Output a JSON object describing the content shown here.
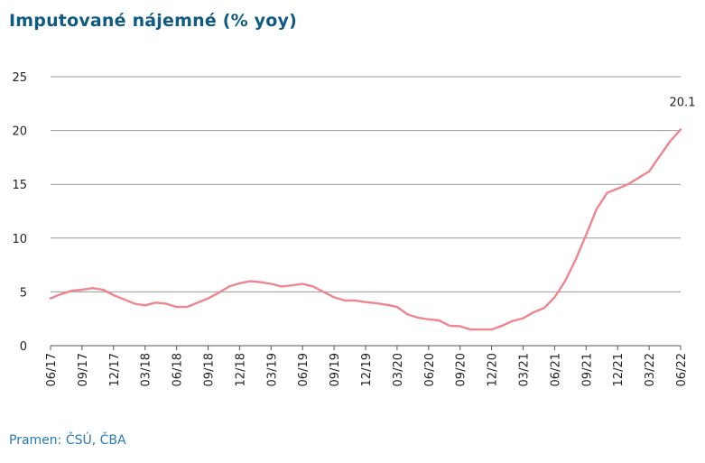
{
  "title": "Imputované nájemné (% yoy)",
  "source": "Pramen: ČSÚ, ČBA",
  "chart_data": {
    "type": "line",
    "title": "Imputované nájemné (% yoy)",
    "xlabel": "",
    "ylabel": "",
    "ylim": [
      0,
      25
    ],
    "yticks": [
      "0",
      "5",
      "10",
      "15",
      "20",
      "25"
    ],
    "grid": true,
    "xticklabels": [
      "06/17",
      "09/17",
      "12/17",
      "03/18",
      "06/18",
      "09/18",
      "12/18",
      "03/19",
      "06/19",
      "09/19",
      "12/19",
      "03/20",
      "06/20",
      "09/20",
      "12/20",
      "03/21",
      "06/21",
      "09/21",
      "12/21",
      "03/22",
      "06/22"
    ],
    "x": [
      "06/17",
      "07/17",
      "08/17",
      "09/17",
      "10/17",
      "11/17",
      "12/17",
      "01/18",
      "02/18",
      "03/18",
      "04/18",
      "05/18",
      "06/18",
      "07/18",
      "08/18",
      "09/18",
      "10/18",
      "11/18",
      "12/18",
      "01/19",
      "02/19",
      "03/19",
      "04/19",
      "05/19",
      "06/19",
      "07/19",
      "08/19",
      "09/19",
      "10/19",
      "11/19",
      "12/19",
      "01/20",
      "02/20",
      "03/20",
      "04/20",
      "05/20",
      "06/20",
      "07/20",
      "08/20",
      "09/20",
      "10/20",
      "11/20",
      "12/20",
      "01/21",
      "02/21",
      "03/21",
      "04/21",
      "05/21",
      "06/21",
      "07/21",
      "08/21",
      "09/21",
      "10/21",
      "11/21",
      "12/21",
      "01/22",
      "02/22",
      "03/22",
      "04/22",
      "05/22",
      "06/22"
    ],
    "series": [
      {
        "values": [
          4.4,
          4.8,
          5.1,
          5.2,
          5.35,
          5.2,
          4.7,
          4.3,
          3.9,
          3.75,
          4.0,
          3.9,
          3.6,
          3.6,
          4.0,
          4.4,
          4.9,
          5.5,
          5.8,
          6.0,
          5.9,
          5.75,
          5.5,
          5.6,
          5.75,
          5.5,
          5.0,
          4.5,
          4.2,
          4.2,
          4.05,
          3.95,
          3.8,
          3.6,
          2.9,
          2.6,
          2.45,
          2.35,
          1.85,
          1.8,
          1.5,
          1.5,
          1.5,
          1.85,
          2.3,
          2.55,
          3.1,
          3.5,
          4.5,
          6.0,
          8.0,
          10.3,
          12.7,
          14.2,
          14.6,
          15.0,
          15.6,
          16.2,
          17.6,
          19.0,
          20.1
        ],
        "color": "#f0848f"
      }
    ],
    "annotations": [
      {
        "x": "06/22",
        "text": "20.1"
      }
    ]
  }
}
